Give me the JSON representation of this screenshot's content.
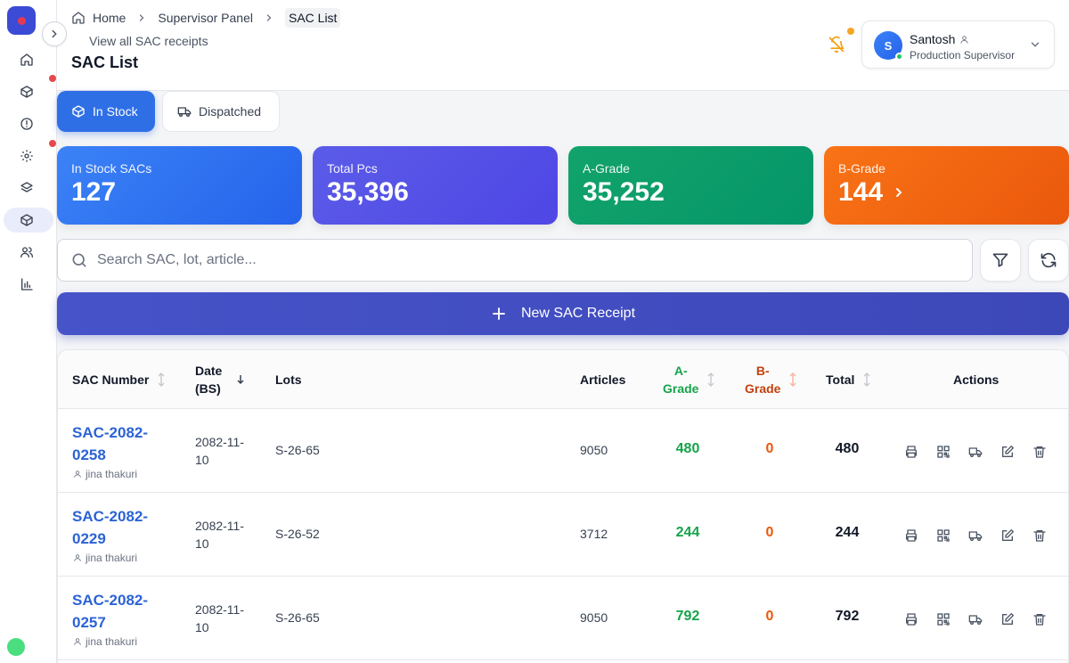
{
  "breadcrumb": {
    "home": "Home",
    "panel": "Supervisor Panel",
    "current": "SAC List"
  },
  "header": {
    "subtitle": "View all SAC receipts",
    "title": "SAC List"
  },
  "user": {
    "initial": "S",
    "name": "Santosh",
    "role": "Production Supervisor"
  },
  "tabs": {
    "in_stock": "In Stock",
    "dispatched": "Dispatched"
  },
  "stats": [
    {
      "label": "In Stock SACs",
      "value": "127"
    },
    {
      "label": "Total Pcs",
      "value": "35,396"
    },
    {
      "label": "A-Grade",
      "value": "35,252"
    },
    {
      "label": "B-Grade",
      "value": "144"
    }
  ],
  "search": {
    "placeholder": "Search SAC, lot, article..."
  },
  "new_button": {
    "label": "New SAC Receipt"
  },
  "table": {
    "headers": {
      "sac": "SAC Number",
      "date_1": "Date",
      "date_2": "(BS)",
      "lots": "Lots",
      "articles": "Articles",
      "a_1": "A-",
      "a_2": "Grade",
      "b_1": "B-",
      "b_2": "Grade",
      "total": "Total",
      "actions": "Actions"
    },
    "rows": [
      {
        "sac": "SAC-2082-0258",
        "by": "jina thakuri",
        "date": "2082-11-10",
        "lots": "S-26-65",
        "articles": "9050",
        "a": "480",
        "b": "0",
        "total": "480"
      },
      {
        "sac": "SAC-2082-0229",
        "by": "jina thakuri",
        "date": "2082-11-10",
        "lots": "S-26-52",
        "articles": "3712",
        "a": "244",
        "b": "0",
        "total": "244"
      },
      {
        "sac": "SAC-2082-0257",
        "by": "jina thakuri",
        "date": "2082-11-10",
        "lots": "S-26-65",
        "articles": "9050",
        "a": "792",
        "b": "0",
        "total": "792"
      }
    ]
  },
  "colors": {
    "primary": "#2f6fe6",
    "a_grade": "#16a34a",
    "b_grade": "#ea580c",
    "indigo": "#4653c9"
  }
}
